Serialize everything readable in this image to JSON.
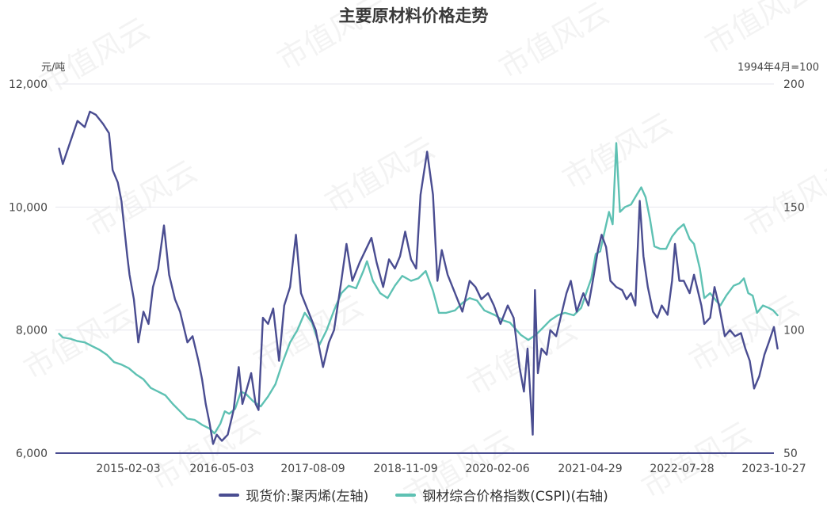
{
  "chart_data": {
    "type": "line",
    "title": "主要原材料价格走势",
    "left_unit": "元/吨",
    "right_unit": "1994年4月=100",
    "x_tick_labels": [
      "2015-02-03",
      "2016-05-03",
      "2017-08-09",
      "2018-11-09",
      "2020-02-06",
      "2021-04-29",
      "2022-07-28",
      "2023-10-27"
    ],
    "y_left": {
      "min": 6000,
      "max": 12000,
      "ticks": [
        6000,
        8000,
        10000,
        12000
      ],
      "tick_labels": [
        "6,000",
        "8,000",
        "10,000",
        "12,000"
      ]
    },
    "y_right": {
      "min": 50,
      "max": 200,
      "ticks": [
        50,
        100,
        150,
        200
      ],
      "tick_labels": [
        "50",
        "100",
        "150",
        "200"
      ]
    },
    "x_range": [
      2014.35,
      2024.15
    ],
    "series": [
      {
        "name": "现货价:聚丙烯(左轴)",
        "axis": "left",
        "color": "#4a4d91",
        "points": [
          [
            2014.4,
            10950
          ],
          [
            2014.45,
            10700
          ],
          [
            2014.55,
            11050
          ],
          [
            2014.65,
            11400
          ],
          [
            2014.75,
            11300
          ],
          [
            2014.82,
            11550
          ],
          [
            2014.9,
            11500
          ],
          [
            2015.0,
            11350
          ],
          [
            2015.08,
            11200
          ],
          [
            2015.13,
            10600
          ],
          [
            2015.2,
            10400
          ],
          [
            2015.25,
            10100
          ],
          [
            2015.33,
            9200
          ],
          [
            2015.36,
            8900
          ],
          [
            2015.42,
            8500
          ],
          [
            2015.48,
            7800
          ],
          [
            2015.55,
            8300
          ],
          [
            2015.62,
            8100
          ],
          [
            2015.68,
            8700
          ],
          [
            2015.75,
            9000
          ],
          [
            2015.83,
            9700
          ],
          [
            2015.9,
            8900
          ],
          [
            2015.98,
            8500
          ],
          [
            2016.05,
            8300
          ],
          [
            2016.15,
            7800
          ],
          [
            2016.22,
            7900
          ],
          [
            2016.3,
            7500
          ],
          [
            2016.35,
            7200
          ],
          [
            2016.4,
            6800
          ],
          [
            2016.45,
            6500
          ],
          [
            2016.5,
            6150
          ],
          [
            2016.55,
            6300
          ],
          [
            2016.62,
            6200
          ],
          [
            2016.7,
            6300
          ],
          [
            2016.78,
            6700
          ],
          [
            2016.85,
            7400
          ],
          [
            2016.9,
            6800
          ],
          [
            2016.95,
            7000
          ],
          [
            2017.02,
            7300
          ],
          [
            2017.08,
            6800
          ],
          [
            2017.12,
            6700
          ],
          [
            2017.18,
            8200
          ],
          [
            2017.25,
            8100
          ],
          [
            2017.32,
            8350
          ],
          [
            2017.4,
            7500
          ],
          [
            2017.47,
            8400
          ],
          [
            2017.55,
            8700
          ],
          [
            2017.63,
            9550
          ],
          [
            2017.7,
            8600
          ],
          [
            2017.8,
            8300
          ],
          [
            2017.9,
            8000
          ],
          [
            2018.0,
            7400
          ],
          [
            2018.08,
            7800
          ],
          [
            2018.15,
            8000
          ],
          [
            2018.25,
            8800
          ],
          [
            2018.32,
            9400
          ],
          [
            2018.4,
            8800
          ],
          [
            2018.5,
            9100
          ],
          [
            2018.58,
            9300
          ],
          [
            2018.66,
            9500
          ],
          [
            2018.73,
            9100
          ],
          [
            2018.82,
            8700
          ],
          [
            2018.9,
            9150
          ],
          [
            2018.98,
            9000
          ],
          [
            2019.05,
            9200
          ],
          [
            2019.12,
            9600
          ],
          [
            2019.2,
            9150
          ],
          [
            2019.27,
            9000
          ],
          [
            2019.33,
            10200
          ],
          [
            2019.42,
            10900
          ],
          [
            2019.5,
            10200
          ],
          [
            2019.56,
            8800
          ],
          [
            2019.62,
            9300
          ],
          [
            2019.7,
            8900
          ],
          [
            2019.8,
            8600
          ],
          [
            2019.9,
            8300
          ],
          [
            2020.0,
            8800
          ],
          [
            2020.08,
            8700
          ],
          [
            2020.16,
            8500
          ],
          [
            2020.25,
            8600
          ],
          [
            2020.33,
            8400
          ],
          [
            2020.42,
            8100
          ],
          [
            2020.52,
            8400
          ],
          [
            2020.6,
            8200
          ],
          [
            2020.68,
            7400
          ],
          [
            2020.74,
            7000
          ],
          [
            2020.79,
            7700
          ],
          [
            2020.83,
            6900
          ],
          [
            2020.86,
            6300
          ],
          [
            2020.89,
            8650
          ],
          [
            2020.93,
            7300
          ],
          [
            2020.98,
            7700
          ],
          [
            2021.05,
            7600
          ],
          [
            2021.1,
            8000
          ],
          [
            2021.18,
            7900
          ],
          [
            2021.26,
            8300
          ],
          [
            2021.32,
            8600
          ],
          [
            2021.38,
            8800
          ],
          [
            2021.46,
            8300
          ],
          [
            2021.55,
            8600
          ],
          [
            2021.62,
            8400
          ],
          [
            2021.68,
            8800
          ],
          [
            2021.75,
            9300
          ],
          [
            2021.8,
            9550
          ],
          [
            2021.86,
            9350
          ],
          [
            2021.92,
            8800
          ],
          [
            2022.0,
            8700
          ],
          [
            2022.08,
            8650
          ],
          [
            2022.14,
            8500
          ],
          [
            2022.2,
            8600
          ],
          [
            2022.26,
            8400
          ],
          [
            2022.32,
            10100
          ],
          [
            2022.37,
            9200
          ],
          [
            2022.43,
            8700
          ],
          [
            2022.5,
            8300
          ],
          [
            2022.56,
            8200
          ],
          [
            2022.62,
            8400
          ],
          [
            2022.7,
            8250
          ],
          [
            2022.76,
            8800
          ],
          [
            2022.8,
            9400
          ],
          [
            2022.86,
            8800
          ],
          [
            2022.92,
            8800
          ],
          [
            2023.0,
            8600
          ],
          [
            2023.06,
            8900
          ],
          [
            2023.1,
            8700
          ],
          [
            2023.16,
            8400
          ],
          [
            2023.2,
            8100
          ],
          [
            2023.28,
            8200
          ],
          [
            2023.34,
            8700
          ],
          [
            2023.4,
            8400
          ],
          [
            2023.48,
            7900
          ],
          [
            2023.55,
            8000
          ],
          [
            2023.62,
            7900
          ],
          [
            2023.7,
            7950
          ],
          [
            2023.76,
            7700
          ],
          [
            2023.82,
            7500
          ],
          [
            2023.88,
            7050
          ],
          [
            2023.95,
            7250
          ],
          [
            2024.02,
            7600
          ],
          [
            2024.08,
            7800
          ],
          [
            2024.15,
            8050
          ],
          [
            2024.2,
            7700
          ]
        ]
      },
      {
        "name": "钢材综合价格指数(CSPI)(右轴)",
        "axis": "right",
        "color": "#5ec1b3",
        "points": [
          [
            2014.4,
            98.5
          ],
          [
            2014.45,
            97
          ],
          [
            2014.55,
            96.5
          ],
          [
            2014.65,
            95.5
          ],
          [
            2014.75,
            95
          ],
          [
            2014.85,
            93.5
          ],
          [
            2014.95,
            92
          ],
          [
            2015.05,
            90
          ],
          [
            2015.15,
            87
          ],
          [
            2015.25,
            86
          ],
          [
            2015.35,
            84.5
          ],
          [
            2015.45,
            82
          ],
          [
            2015.55,
            80
          ],
          [
            2015.65,
            76.5
          ],
          [
            2015.75,
            75
          ],
          [
            2015.85,
            73.5
          ],
          [
            2015.95,
            70
          ],
          [
            2016.05,
            67
          ],
          [
            2016.15,
            64
          ],
          [
            2016.25,
            63.5
          ],
          [
            2016.35,
            61.5
          ],
          [
            2016.45,
            60
          ],
          [
            2016.52,
            58
          ],
          [
            2016.6,
            62
          ],
          [
            2016.66,
            67
          ],
          [
            2016.72,
            66
          ],
          [
            2016.8,
            68
          ],
          [
            2016.88,
            75
          ],
          [
            2016.95,
            74
          ],
          [
            2017.05,
            71
          ],
          [
            2017.15,
            69
          ],
          [
            2017.25,
            73
          ],
          [
            2017.35,
            78
          ],
          [
            2017.45,
            87
          ],
          [
            2017.55,
            95
          ],
          [
            2017.65,
            100
          ],
          [
            2017.75,
            107
          ],
          [
            2017.85,
            103
          ],
          [
            2017.95,
            94
          ],
          [
            2018.05,
            100
          ],
          [
            2018.15,
            108
          ],
          [
            2018.25,
            115
          ],
          [
            2018.35,
            118
          ],
          [
            2018.45,
            117
          ],
          [
            2018.55,
            124
          ],
          [
            2018.6,
            128
          ],
          [
            2018.68,
            120
          ],
          [
            2018.78,
            115
          ],
          [
            2018.88,
            113
          ],
          [
            2018.98,
            118
          ],
          [
            2019.08,
            122
          ],
          [
            2019.2,
            120
          ],
          [
            2019.3,
            121
          ],
          [
            2019.4,
            124
          ],
          [
            2019.5,
            116
          ],
          [
            2019.58,
            107
          ],
          [
            2019.68,
            107
          ],
          [
            2019.8,
            108
          ],
          [
            2019.9,
            111
          ],
          [
            2020.0,
            113
          ],
          [
            2020.1,
            112
          ],
          [
            2020.2,
            108
          ],
          [
            2020.35,
            106
          ],
          [
            2020.45,
            104
          ],
          [
            2020.55,
            103
          ],
          [
            2020.7,
            98
          ],
          [
            2020.8,
            96
          ],
          [
            2020.9,
            98
          ],
          [
            2021.0,
            101
          ],
          [
            2021.1,
            104
          ],
          [
            2021.2,
            106
          ],
          [
            2021.3,
            107
          ],
          [
            2021.42,
            106
          ],
          [
            2021.52,
            109
          ],
          [
            2021.6,
            116
          ],
          [
            2021.66,
            121
          ],
          [
            2021.72,
            131
          ],
          [
            2021.78,
            132
          ],
          [
            2021.84,
            140
          ],
          [
            2021.9,
            148
          ],
          [
            2021.95,
            143
          ],
          [
            2022.0,
            176
          ],
          [
            2022.05,
            148
          ],
          [
            2022.12,
            150
          ],
          [
            2022.2,
            151
          ],
          [
            2022.28,
            155
          ],
          [
            2022.34,
            158
          ],
          [
            2022.4,
            154
          ],
          [
            2022.46,
            145
          ],
          [
            2022.52,
            134
          ],
          [
            2022.6,
            133
          ],
          [
            2022.68,
            133
          ],
          [
            2022.76,
            138
          ],
          [
            2022.84,
            141
          ],
          [
            2022.92,
            143
          ],
          [
            2023.0,
            137
          ],
          [
            2023.06,
            135
          ],
          [
            2023.14,
            125
          ],
          [
            2023.2,
            113
          ],
          [
            2023.28,
            115
          ],
          [
            2023.36,
            112
          ],
          [
            2023.42,
            110
          ],
          [
            2023.5,
            114
          ],
          [
            2023.6,
            118
          ],
          [
            2023.68,
            119
          ],
          [
            2023.74,
            121
          ],
          [
            2023.8,
            115
          ],
          [
            2023.86,
            114
          ],
          [
            2023.92,
            107
          ],
          [
            2024.0,
            110
          ],
          [
            2024.08,
            109
          ],
          [
            2024.14,
            108
          ],
          [
            2024.2,
            106
          ]
        ]
      }
    ]
  },
  "watermark": "市值风云",
  "legend_color_left": "#4a4d91",
  "legend_color_right": "#5ec1b3"
}
